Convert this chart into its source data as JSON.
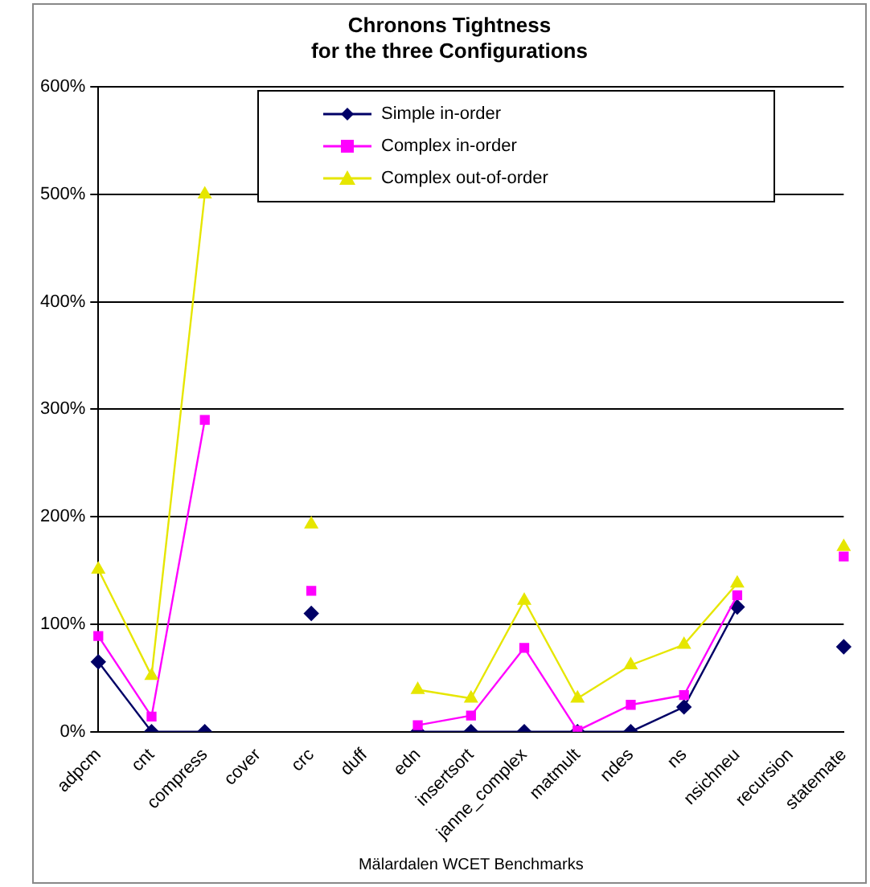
{
  "chart_data": {
    "type": "line",
    "title": "Chronons Tightness",
    "subtitle": "for the three Configurations",
    "xlabel": "Mälardalen WCET Benchmarks",
    "categories": [
      "adpcm",
      "cnt",
      "compress",
      "cover",
      "crc",
      "duff",
      "edn",
      "insertsort",
      "janne_complex",
      "matmult",
      "ndes",
      "ns",
      "nsichneu",
      "recursion",
      "statemate"
    ],
    "series": [
      {
        "name": "Simple in-order",
        "color": "#000066",
        "marker": "diamond",
        "values": [
          65,
          0,
          0,
          null,
          110,
          null,
          0,
          0,
          0,
          0,
          0,
          23,
          116,
          null,
          79
        ]
      },
      {
        "name": "Complex in-order",
        "color": "#ff00ff",
        "marker": "square",
        "values": [
          89,
          14,
          290,
          null,
          131,
          null,
          6,
          15,
          78,
          1,
          25,
          34,
          127,
          null,
          163
        ]
      },
      {
        "name": "Complex out-of-order",
        "color": "#e6e600",
        "marker": "triangle",
        "values": [
          151,
          52,
          500,
          null,
          193,
          null,
          39,
          31,
          122,
          31,
          62,
          81,
          138,
          null,
          172
        ]
      }
    ],
    "ylim": [
      0,
      600
    ],
    "yticks": [
      {
        "value": 0,
        "label": "0%"
      },
      {
        "value": 100,
        "label": "100%"
      },
      {
        "value": 200,
        "label": "200%"
      },
      {
        "value": 300,
        "label": "300%"
      },
      {
        "value": 400,
        "label": "400%"
      },
      {
        "value": 500,
        "label": "500%"
      },
      {
        "value": 600,
        "label": "600%"
      }
    ],
    "grid": "y",
    "legend": "top"
  }
}
